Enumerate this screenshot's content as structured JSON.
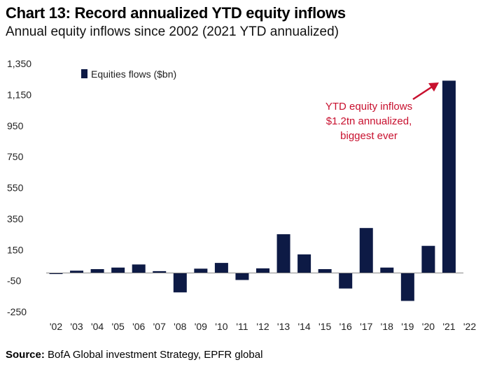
{
  "chart_data": {
    "type": "bar",
    "title": "Chart 13: Record annualized YTD equity inflows",
    "subtitle": "Annual equity inflows since 2002 (2021 YTD annualized)",
    "categories": [
      "'02",
      "'03",
      "'04",
      "'05",
      "'06",
      "'07",
      "'08",
      "'09",
      "'10",
      "'11",
      "'12",
      "'13",
      "'14",
      "'15",
      "'16",
      "'17",
      "'18",
      "'19",
      "'20",
      "'21",
      "'22"
    ],
    "series": [
      {
        "name": "Equities flows ($bn)",
        "color": "#0d1a45",
        "values": [
          -5,
          15,
          25,
          35,
          55,
          12,
          -125,
          28,
          65,
          -45,
          30,
          250,
          120,
          25,
          -100,
          290,
          35,
          -180,
          175,
          1240,
          null
        ]
      }
    ],
    "yticks": [
      1350,
      1150,
      950,
      750,
      550,
      350,
      150,
      -50,
      -250
    ],
    "ytick_labels": [
      "1,350",
      "1,150",
      "950",
      "750",
      "550",
      "350",
      "150",
      "-50",
      "-250"
    ],
    "ylim": [
      -250,
      1350
    ],
    "legend_position": "top-left",
    "annotation": {
      "lines": [
        "YTD equity inflows",
        "$1.2tn annualized,",
        "biggest ever"
      ],
      "color": "#c8102e",
      "target_category": "'21"
    }
  },
  "source": {
    "label": "Source:",
    "text": "BofA Global investment Strategy, EPFR global"
  }
}
